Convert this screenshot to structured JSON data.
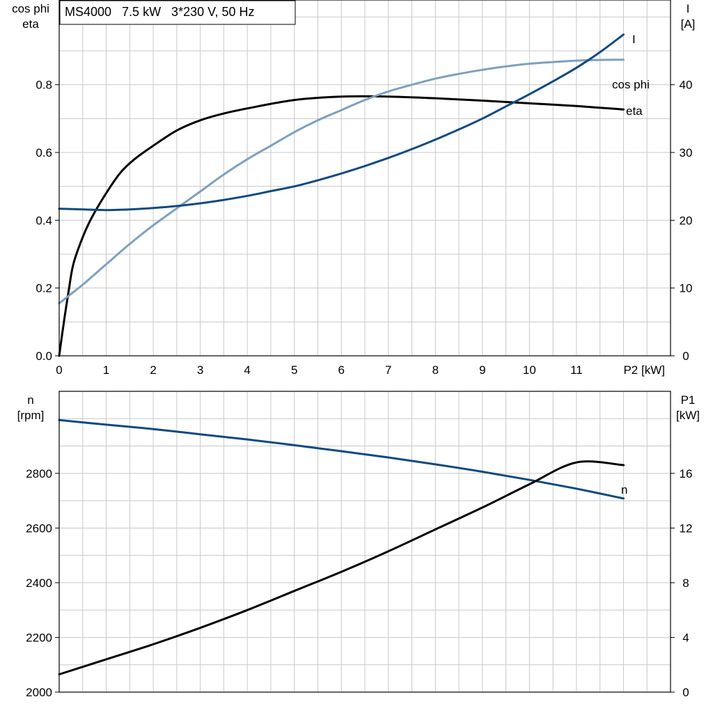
{
  "title": "MS4000   7.5 kW   3*230 V, 50 Hz",
  "colors": {
    "dark_blue": "#0d4a80",
    "light_blue": "#7da0c0",
    "black": "#000000",
    "grid": "#c8c8c8"
  },
  "chart_data": [
    {
      "type": "line",
      "title": "MS4000   7.5 kW   3*230 V, 50 Hz",
      "xlabel": "P2 [kW]",
      "x_ticks": [
        0,
        1,
        2,
        3,
        4,
        5,
        6,
        7,
        8,
        9,
        10,
        11
      ],
      "xlim": [
        0,
        13
      ],
      "left_axis": {
        "label_lines": [
          "cos phi",
          "eta"
        ],
        "ylim": [
          0,
          1.05
        ],
        "ticks": [
          0.0,
          0.2,
          0.4,
          0.6,
          0.8
        ],
        "tick_labels": [
          "0.0",
          "0.2",
          "0.4",
          "0.6",
          "0.8"
        ]
      },
      "right_axis": {
        "label_lines": [
          "I",
          "[A]"
        ],
        "ylim": [
          0,
          52.5
        ],
        "ticks": [
          0,
          10,
          20,
          30,
          40
        ],
        "tick_labels": [
          "0",
          "10",
          "20",
          "30",
          "40"
        ]
      },
      "series": [
        {
          "name": "eta",
          "axis": "left",
          "color": "#000000",
          "x": [
            0,
            0.1,
            0.2,
            0.3,
            0.5,
            0.7,
            1.0,
            1.3,
            1.6,
            2.0,
            2.5,
            3.0,
            3.5,
            4.0,
            5.0,
            6.0,
            7.0,
            8.0,
            9.0,
            10.0,
            11.0,
            12.0
          ],
          "y": [
            0.0,
            0.1,
            0.19,
            0.27,
            0.35,
            0.41,
            0.48,
            0.54,
            0.58,
            0.62,
            0.665,
            0.695,
            0.715,
            0.73,
            0.755,
            0.765,
            0.765,
            0.76,
            0.753,
            0.745,
            0.737,
            0.727
          ]
        },
        {
          "name": "cos phi",
          "axis": "left",
          "color": "#7da0c0",
          "x": [
            0,
            0.5,
            1.0,
            1.5,
            2.0,
            2.5,
            3.0,
            3.5,
            4.0,
            4.5,
            5.0,
            5.5,
            6.0,
            6.5,
            7.0,
            7.5,
            8.0,
            8.5,
            9.0,
            9.5,
            10.0,
            10.5,
            11.0,
            11.5,
            12.0
          ],
          "y": [
            0.155,
            0.21,
            0.27,
            0.33,
            0.385,
            0.435,
            0.485,
            0.535,
            0.58,
            0.62,
            0.66,
            0.695,
            0.725,
            0.755,
            0.78,
            0.8,
            0.818,
            0.832,
            0.844,
            0.854,
            0.862,
            0.867,
            0.871,
            0.873,
            0.874
          ]
        },
        {
          "name": "I",
          "axis": "right",
          "color": "#0d4a80",
          "x": [
            0,
            0.5,
            1.0,
            1.5,
            2.0,
            2.5,
            3.0,
            3.5,
            4.0,
            4.5,
            5.0,
            5.5,
            6.0,
            6.5,
            7.0,
            7.5,
            8.0,
            8.5,
            9.0,
            9.5,
            10.0,
            10.5,
            11.0,
            11.5,
            12.0
          ],
          "y": [
            21.7,
            21.6,
            21.5,
            21.6,
            21.8,
            22.1,
            22.5,
            23.0,
            23.6,
            24.3,
            25.0,
            25.9,
            26.9,
            28.0,
            29.2,
            30.5,
            31.9,
            33.4,
            35.0,
            36.8,
            38.6,
            40.5,
            42.5,
            44.8,
            47.4
          ]
        }
      ]
    },
    {
      "type": "line",
      "xlim": [
        0,
        13
      ],
      "left_axis": {
        "label_lines": [
          "n",
          "[rpm]"
        ],
        "ylim": [
          2000,
          3100
        ],
        "ticks": [
          2000,
          2200,
          2400,
          2600,
          2800
        ],
        "tick_labels": [
          "2000",
          "2200",
          "2400",
          "2600",
          "2800"
        ]
      },
      "right_axis": {
        "label_lines": [
          "P1",
          "[kW]"
        ],
        "ylim": [
          0,
          22
        ],
        "ticks": [
          0,
          4,
          8,
          12,
          16
        ],
        "tick_labels": [
          "0",
          "4",
          "8",
          "12",
          "16"
        ]
      },
      "series": [
        {
          "name": "n",
          "axis": "left",
          "color": "#0d4a80",
          "x": [
            0,
            1,
            2,
            3,
            4,
            5,
            6,
            7,
            8,
            9,
            10,
            11,
            12
          ],
          "y": [
            2995,
            2978,
            2962,
            2943,
            2924,
            2903,
            2881,
            2858,
            2833,
            2806,
            2776,
            2744,
            2708
          ]
        },
        {
          "name": "P1",
          "axis": "right",
          "color": "#000000",
          "x": [
            0,
            1,
            2,
            3,
            4,
            5,
            6,
            7,
            8,
            9,
            10,
            11,
            12
          ],
          "y": [
            1.3,
            2.4,
            3.5,
            4.7,
            6.0,
            7.4,
            8.8,
            10.3,
            11.9,
            13.5,
            15.2,
            16.8,
            16.6
          ]
        }
      ]
    }
  ]
}
